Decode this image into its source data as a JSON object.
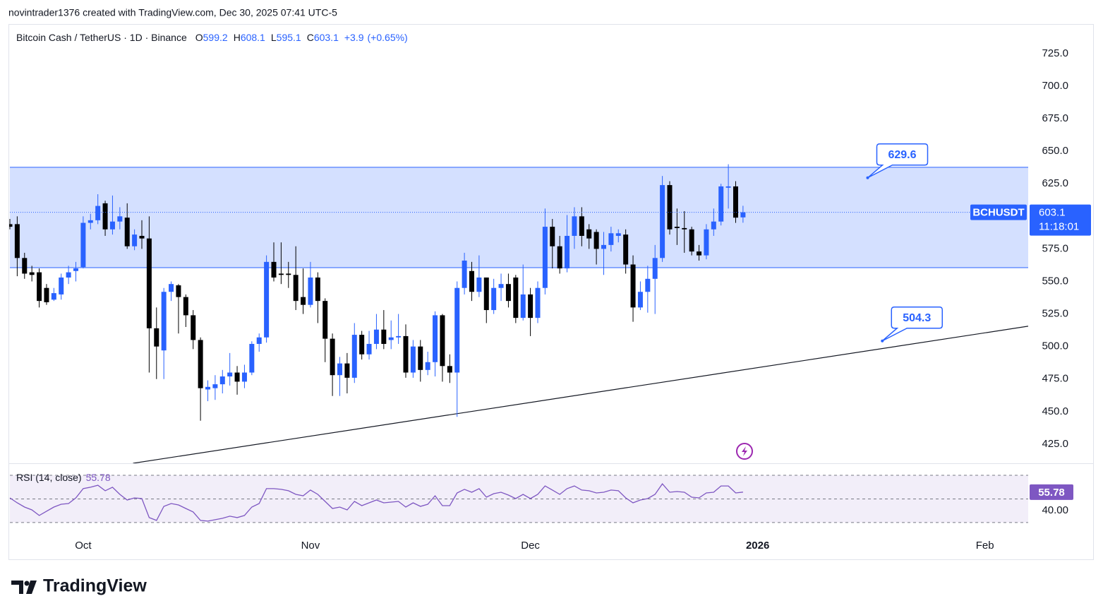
{
  "header": {
    "attribution": "novintrader1376 created with TradingView.com, Dec 30, 2025 07:41 UTC-5"
  },
  "chart_data": {
    "type": "candlestick",
    "title": "Bitcoin Cash / TetherUS · 1D · Binance",
    "symbol": "BCHUSDT",
    "countdown": "11:18:01",
    "change": "+3.9",
    "change_pct": "(+0.65%)",
    "ohlc_labels": [
      "O",
      "H",
      "L",
      "C"
    ],
    "up_color": "#2962ff",
    "down_color": "#000000",
    "open": [
      594,
      594,
      568,
      557,
      557,
      545,
      536,
      540,
      553,
      558,
      561,
      595,
      597,
      610,
      590,
      596,
      599,
      577,
      585,
      583,
      514,
      497,
      542,
      547,
      538,
      524,
      505,
      467,
      468,
      471,
      477,
      480,
      473,
      480,
      502,
      507,
      565,
      556,
      556,
      555,
      538,
      532,
      553,
      535,
      506,
      478,
      487,
      476,
      509,
      494,
      502,
      513,
      505,
      507,
      508,
      480,
      500,
      482,
      488,
      524,
      485,
      480,
      545,
      558,
      542,
      553,
      528,
      545,
      548,
      553,
      522,
      540,
      522,
      545,
      592,
      577,
      560,
      585,
      600,
      590,
      588,
      575,
      578,
      585,
      586,
      563,
      530,
      542,
      552,
      568,
      624,
      592,
      591,
      590,
      573,
      570,
      590,
      596,
      622,
      623,
      599.2
    ],
    "high": [
      598,
      600,
      572,
      562,
      560,
      548,
      545,
      556,
      562,
      565,
      600,
      602,
      617,
      612,
      616,
      607,
      610,
      590,
      597,
      600,
      530,
      545,
      550,
      548,
      540,
      528,
      507,
      474,
      478,
      482,
      495,
      485,
      486,
      504,
      510,
      570,
      580,
      580,
      565,
      577,
      560,
      565,
      557,
      537,
      510,
      492,
      495,
      518,
      512,
      512,
      525,
      528,
      520,
      525,
      517,
      505,
      505,
      496,
      527,
      525,
      494,
      550,
      572,
      565,
      570,
      553,
      552,
      556,
      556,
      555,
      563,
      545,
      550,
      606,
      598,
      585,
      601,
      607,
      607,
      594,
      590,
      588,
      592,
      590,
      590,
      570,
      550,
      562,
      578,
      631,
      627,
      606,
      604,
      592,
      578,
      594,
      606,
      625,
      640,
      627,
      608.1
    ],
    "low": [
      590,
      554,
      552,
      550,
      530,
      532,
      535,
      536,
      548,
      550,
      560,
      590,
      594,
      585,
      586,
      590,
      575,
      574,
      575,
      480,
      475,
      475,
      535,
      510,
      515,
      498,
      443,
      458,
      459,
      464,
      470,
      463,
      468,
      478,
      496,
      503,
      550,
      548,
      545,
      528,
      525,
      530,
      518,
      488,
      462,
      462,
      464,
      472,
      490,
      490,
      498,
      498,
      498,
      502,
      476,
      476,
      473,
      478,
      477,
      473,
      472,
      446,
      540,
      535,
      538,
      518,
      525,
      535,
      530,
      518,
      520,
      508,
      518,
      540,
      560,
      556,
      557,
      575,
      577,
      575,
      563,
      555,
      573,
      580,
      556,
      519,
      528,
      526,
      525,
      565,
      586,
      578,
      572,
      570,
      566,
      567,
      585,
      593,
      606,
      595,
      595.1
    ],
    "close": [
      592,
      568,
      556,
      555,
      535,
      534,
      541,
      553,
      557,
      560,
      595,
      597,
      608,
      590,
      596,
      600,
      577,
      586,
      583,
      514,
      500,
      542,
      548,
      538,
      524,
      505,
      468,
      469,
      471,
      477,
      480,
      473,
      480,
      502,
      507,
      565,
      553,
      555,
      555,
      535,
      532,
      553,
      535,
      506,
      478,
      487,
      476,
      509,
      494,
      502,
      513,
      502,
      507,
      508,
      480,
      500,
      482,
      488,
      524,
      485,
      480,
      545,
      566,
      542,
      553,
      528,
      545,
      548,
      535,
      522,
      540,
      522,
      545,
      592,
      577,
      560,
      585,
      600,
      585,
      583,
      575,
      578,
      587,
      587,
      563,
      530,
      542,
      552,
      568,
      624,
      590,
      591,
      590,
      573,
      570,
      590,
      596,
      623,
      623,
      599,
      603.1
    ],
    "ylim": [
      410.3,
      747.2
    ],
    "yticks": [
      {
        "value": 425,
        "label": "425.0"
      },
      {
        "value": 450,
        "label": "450.0"
      },
      {
        "value": 475,
        "label": "475.0"
      },
      {
        "value": 500,
        "label": "500.0"
      },
      {
        "value": 525,
        "label": "525.0"
      },
      {
        "value": 550,
        "label": "550.0"
      },
      {
        "value": 575,
        "label": "575.0"
      },
      {
        "value": 600,
        "label": "600.0"
      },
      {
        "value": 625,
        "label": "625.0"
      },
      {
        "value": 650,
        "label": "650.0"
      },
      {
        "value": 675,
        "label": "675.0"
      },
      {
        "value": 700,
        "label": "700.0"
      },
      {
        "value": 725,
        "label": "725.0"
      }
    ],
    "xlim": [
      0,
      138.9
    ],
    "xticks": [
      {
        "value": 10,
        "label": "Oct"
      },
      {
        "value": 41,
        "label": "Nov"
      },
      {
        "value": 71,
        "label": "Dec"
      },
      {
        "value": 102,
        "label": "2026"
      },
      {
        "value": 133,
        "label": "Feb"
      }
    ],
    "zone": [
      560.6,
      637.7
    ],
    "trendline": {
      "x": [
        16.8,
        138.9
      ],
      "y": [
        410.3,
        515.6
      ]
    },
    "callouts": [
      {
        "x": 117,
        "value": 629.6
      },
      {
        "x": 119,
        "value": 504.3
      }
    ],
    "rsi": {
      "type": "line",
      "label": "RSI (14, close)",
      "color": "#7e57c2",
      "values": [
        50.9,
        46.7,
        43.1,
        40.7,
        36.0,
        39.6,
        43.1,
        45.5,
        46.1,
        50.9,
        58.7,
        59.9,
        61.6,
        56.9,
        59.9,
        53.9,
        49.1,
        50.9,
        50.3,
        34.2,
        31.8,
        43.7,
        46.1,
        44.9,
        41.9,
        39.0,
        31.8,
        31.2,
        32.4,
        33.6,
        35.4,
        34.2,
        36.0,
        43.1,
        46.1,
        58.7,
        58.7,
        58.1,
        56.9,
        53.9,
        52.7,
        57.5,
        53.9,
        47.9,
        41.9,
        43.1,
        40.7,
        47.9,
        44.3,
        46.7,
        49.1,
        46.7,
        47.3,
        47.9,
        43.1,
        46.7,
        43.7,
        45.5,
        52.7,
        44.3,
        44.3,
        55.1,
        58.1,
        55.7,
        58.7,
        51.5,
        54.5,
        55.7,
        53.3,
        50.3,
        53.9,
        50.3,
        53.9,
        61.0,
        57.5,
        53.9,
        58.7,
        61.0,
        57.5,
        56.9,
        55.1,
        55.7,
        57.5,
        56.9,
        50.9,
        46.7,
        49.1,
        50.3,
        53.9,
        62.8,
        55.7,
        56.3,
        55.7,
        51.5,
        50.9,
        55.1,
        55.7,
        61.0,
        61.0,
        55.1,
        55.78
      ],
      "ylim": [
        18,
        77.8
      ],
      "yticks": [
        {
          "value": 40,
          "label": "40.00"
        }
      ],
      "levels": [
        30,
        50,
        70
      ]
    }
  },
  "footer": {
    "logo": "TradingView"
  }
}
